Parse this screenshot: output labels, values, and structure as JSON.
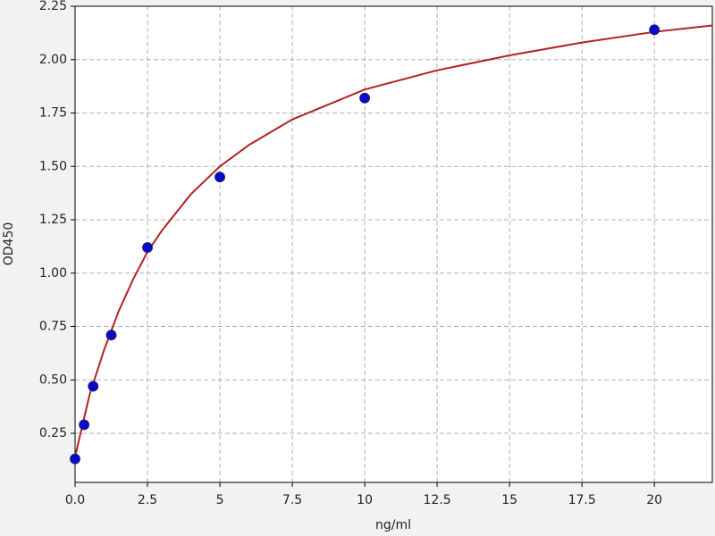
{
  "chart_data": {
    "type": "scatter",
    "xlabel": "ng/ml",
    "ylabel": "OD450",
    "xlim": [
      0,
      22
    ],
    "ylim": [
      0.02,
      2.25
    ],
    "xticks": [
      {
        "value": 0,
        "label": "0.0"
      },
      2.5,
      5,
      7.5,
      10,
      12.5,
      15,
      17.5,
      20
    ],
    "yticks": [
      0.25,
      {
        "value": 0.5,
        "label": "0.50"
      },
      0.75,
      {
        "value": 1,
        "label": "1.00"
      },
      1.25,
      {
        "value": 1.5,
        "label": "1.50"
      },
      1.75,
      {
        "value": 2,
        "label": "2.00"
      },
      2.25
    ],
    "grid": true,
    "series": [
      {
        "type": "line",
        "color": "#b22222",
        "x": [
          0,
          0.5,
          1,
          1.5,
          2,
          2.5,
          3,
          4,
          5,
          6,
          7.5,
          10,
          12.5,
          15,
          17.5,
          20,
          22
        ],
        "values": [
          0.14,
          0.43,
          0.64,
          0.82,
          0.97,
          1.1,
          1.2,
          1.37,
          1.5,
          1.6,
          1.72,
          1.86,
          1.95,
          2.02,
          2.08,
          2.13,
          2.16
        ]
      },
      {
        "type": "scatter",
        "color": "#0a0ac8",
        "x": [
          0,
          0.3125,
          0.625,
          1.25,
          2.5,
          5,
          10,
          20
        ],
        "values": [
          0.13,
          0.29,
          0.47,
          0.71,
          1.12,
          1.45,
          1.82,
          2.14
        ]
      }
    ]
  }
}
